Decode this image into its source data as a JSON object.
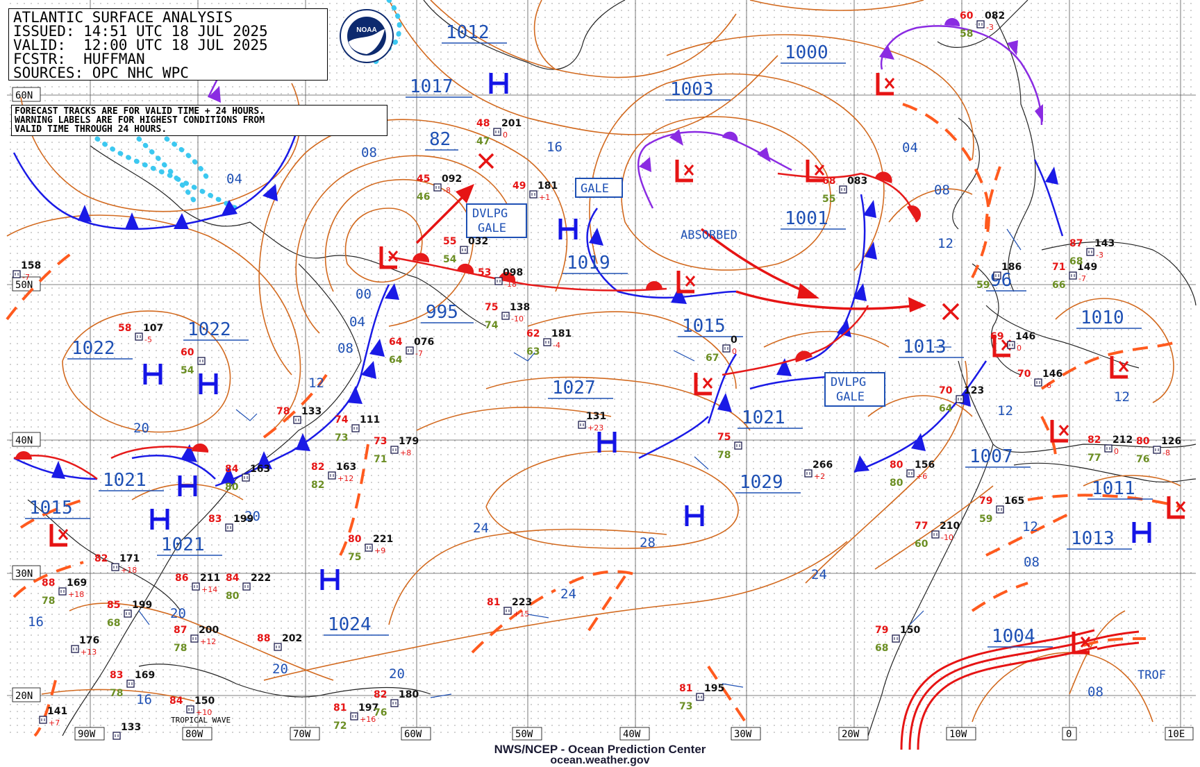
{
  "header": {
    "title": "ATLANTIC SURFACE ANALYSIS",
    "issued": "ISSUED: 14:51 UTC 18 JUL 2025",
    "valid": "VALID:  12:00 UTC 18 JUL 2025",
    "forecaster": "FCSTR:  HUFFMAN",
    "sources": "SOURCES: OPC NHC WPC"
  },
  "notice": {
    "line1": "FORECAST TRACKS ARE FOR VALID TIME + 24 HOURS.",
    "line2": "WARNING LABELS ARE FOR HIGHEST CONDITIONS FROM",
    "line3": "VALID TIME THROUGH 24 HOURS."
  },
  "logo_text": "NOAA",
  "footer": {
    "line1": "NWS/NCEP - Ocean Prediction Center",
    "line2": "ocean.weather.gov"
  },
  "colors": {
    "isobar": "#d2691e",
    "cold_front": "#1a1ae6",
    "warm_front": "#e61a1a",
    "occluded_front": "#8a2be2",
    "trough": "#ff5a1e",
    "label_blue": "#1e50b4",
    "high_blue": "#1414e6",
    "low_red": "#e61414",
    "tropical_wave": "#3cc8f0"
  },
  "lat_labels": [
    "60N",
    "50N",
    "40N",
    "30N",
    "20N"
  ],
  "lon_labels": [
    "90W",
    "80W",
    "70W",
    "60W",
    "50W",
    "40W",
    "30W",
    "20W",
    "10W",
    "0",
    "10E"
  ],
  "pressure_labels": [
    "1012",
    "1017",
    "82",
    "1003",
    "1000",
    "1001",
    "1019",
    "995",
    "1022",
    "1022",
    "1015",
    "1027",
    "1013",
    "1010",
    "1021",
    "1021",
    "1029",
    "1007",
    "1011",
    "1015",
    "1021",
    "1013",
    "1024",
    "1004",
    "96"
  ],
  "isobar_labels": [
    "08",
    "04",
    "16",
    "00",
    "04",
    "08",
    "12",
    "20",
    "20",
    "20",
    "16",
    "20",
    "16",
    "24",
    "28",
    "24",
    "24",
    "20",
    "04",
    "08",
    "12",
    "12",
    "12",
    "08",
    "12",
    "08"
  ],
  "box_labels": [
    "GALE",
    "DVLPG GALE",
    "DVLPG GALE"
  ],
  "plain_labels": [
    "ABSORBED",
    "TROF",
    "TROPICAL WAVE"
  ],
  "high_centers_count": 10,
  "low_centers_count": 12,
  "stations": [
    {
      "pres": "158",
      "temp": "",
      "dew": "",
      "tend": "-7"
    },
    {
      "pres": "107",
      "temp": "58",
      "dew": "",
      "tend": "-5"
    },
    {
      "pres": "",
      "temp": "60",
      "dew": "54",
      "tend": ""
    },
    {
      "pres": "092",
      "temp": "45",
      "dew": "46",
      "tend": "-8"
    },
    {
      "pres": "201",
      "temp": "48",
      "dew": "47",
      "tend": "0"
    },
    {
      "pres": "181",
      "temp": "49",
      "dew": "",
      "tend": "+1"
    },
    {
      "pres": "032",
      "temp": "55",
      "dew": "54",
      "tend": ""
    },
    {
      "pres": "098",
      "temp": "53",
      "dew": "",
      "tend": "-18"
    },
    {
      "pres": "138",
      "temp": "75",
      "dew": "74",
      "tend": "-10"
    },
    {
      "pres": "076",
      "temp": "64",
      "dew": "64",
      "tend": "-7"
    },
    {
      "pres": "181",
      "temp": "62",
      "dew": "63",
      "tend": "-4"
    },
    {
      "pres": "133",
      "temp": "78",
      "dew": "",
      "tend": ""
    },
    {
      "pres": "111",
      "temp": "74",
      "dew": "73",
      "tend": ""
    },
    {
      "pres": "163",
      "temp": "84",
      "dew": "80",
      "tend": ""
    },
    {
      "pres": "163",
      "temp": "82",
      "dew": "82",
      "tend": "+12"
    },
    {
      "pres": "179",
      "temp": "73",
      "dew": "71",
      "tend": "+8"
    },
    {
      "pres": "131",
      "temp": "",
      "dew": "",
      "tend": "+23"
    },
    {
      "pres": "199",
      "temp": "83",
      "dew": "",
      "tend": ""
    },
    {
      "pres": "221",
      "temp": "80",
      "dew": "75",
      "tend": "+9"
    },
    {
      "pres": "171",
      "temp": "82",
      "dew": "",
      "tend": "+18"
    },
    {
      "pres": "169",
      "temp": "88",
      "dew": "78",
      "tend": "+18"
    },
    {
      "pres": "199",
      "temp": "85",
      "dew": "68",
      "tend": ""
    },
    {
      "pres": "211",
      "temp": "86",
      "dew": "",
      "tend": "+14"
    },
    {
      "pres": "222",
      "temp": "84",
      "dew": "80",
      "tend": ""
    },
    {
      "pres": "176",
      "temp": "",
      "dew": "",
      "tend": "+13"
    },
    {
      "pres": "200",
      "temp": "87",
      "dew": "78",
      "tend": "+12"
    },
    {
      "pres": "202",
      "temp": "88",
      "dew": "",
      "tend": ""
    },
    {
      "pres": "169",
      "temp": "83",
      "dew": "78",
      "tend": ""
    },
    {
      "pres": "150",
      "temp": "84",
      "dew": "",
      "tend": "+10"
    },
    {
      "pres": "141",
      "temp": "",
      "dew": "",
      "tend": "+7"
    },
    {
      "pres": "133",
      "temp": "",
      "dew": "",
      "tend": ""
    },
    {
      "pres": "197",
      "temp": "81",
      "dew": "72",
      "tend": "+16"
    },
    {
      "pres": "180",
      "temp": "82",
      "dew": "76",
      "tend": ""
    },
    {
      "pres": "223",
      "temp": "81",
      "dew": "",
      "tend": "+15"
    },
    {
      "pres": "195",
      "temp": "81",
      "dew": "73",
      "tend": ""
    },
    {
      "pres": "266",
      "temp": "",
      "dew": "",
      "tend": "+2"
    },
    {
      "pres": "",
      "temp": "75",
      "dew": "78",
      "tend": ""
    },
    {
      "pres": "0",
      "temp": "",
      "dew": "67",
      "tend": "0"
    },
    {
      "pres": "083",
      "temp": "68",
      "dew": "55",
      "tend": ""
    },
    {
      "pres": "156",
      "temp": "80",
      "dew": "80",
      "tend": "+6"
    },
    {
      "pres": "210",
      "temp": "77",
      "dew": "60",
      "tend": "-10"
    },
    {
      "pres": "150",
      "temp": "79",
      "dew": "68",
      "tend": ""
    },
    {
      "pres": "123",
      "temp": "70",
      "dew": "64",
      "tend": ""
    },
    {
      "pres": "165",
      "temp": "79",
      "dew": "59",
      "tend": ""
    },
    {
      "pres": "082",
      "temp": "60",
      "dew": "58",
      "tend": "-3"
    },
    {
      "pres": "146",
      "temp": "69",
      "dew": "",
      "tend": "0"
    },
    {
      "pres": "146",
      "temp": "70",
      "dew": "",
      "tend": "-6"
    },
    {
      "pres": "186",
      "temp": "",
      "dew": "59",
      "tend": ""
    },
    {
      "pres": "149",
      "temp": "71",
      "dew": "66",
      "tend": "-7"
    },
    {
      "pres": "143",
      "temp": "87",
      "dew": "68",
      "tend": "-3"
    },
    {
      "pres": "212",
      "temp": "82",
      "dew": "77",
      "tend": "0"
    },
    {
      "pres": "126",
      "temp": "80",
      "dew": "76",
      "tend": "-8"
    }
  ]
}
